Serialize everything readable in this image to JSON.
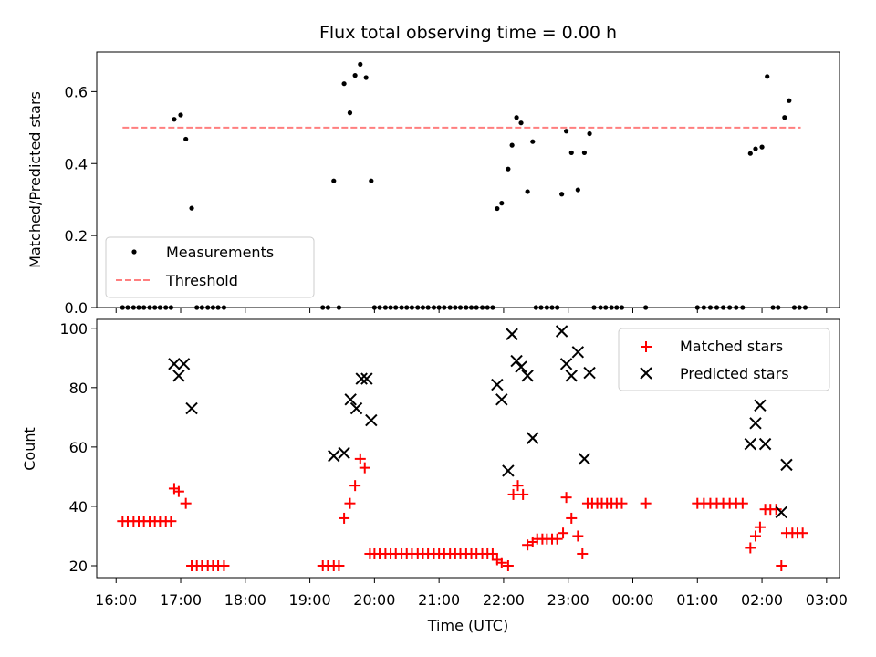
{
  "chart_data": [
    {
      "type": "scatter",
      "title": "Flux total observing time = 0.00 h",
      "xlabel": "",
      "ylabel": "Matched/Predicted stars",
      "xlim": [
        15.7,
        27.2
      ],
      "ylim": [
        0,
        0.71
      ],
      "yticks": [
        0.0,
        0.2,
        0.4,
        0.6
      ],
      "ytick_labels": [
        "0.0",
        "0.2",
        "0.4",
        "0.6"
      ],
      "legend": {
        "position": "lower-left",
        "entries": [
          "Measurements",
          "Threshold"
        ]
      },
      "threshold": {
        "name": "Threshold",
        "value": 0.5,
        "x_range": [
          16.1,
          26.6
        ],
        "color": "#ff7f7f"
      },
      "series": [
        {
          "name": "Measurements",
          "marker": "dot",
          "color": "#000000",
          "x": [
            16.1,
            16.18,
            16.27,
            16.35,
            16.43,
            16.52,
            16.6,
            16.68,
            16.77,
            16.85,
            16.9,
            17.0,
            17.08,
            17.17,
            17.25,
            17.33,
            17.42,
            17.5,
            17.58,
            17.67,
            19.2,
            19.28,
            19.37,
            19.45,
            19.53,
            19.62,
            19.7,
            19.78,
            19.87,
            19.95,
            20.0,
            20.08,
            20.17,
            20.25,
            20.33,
            20.42,
            20.5,
            20.58,
            20.67,
            20.75,
            20.83,
            20.92,
            21.0,
            21.08,
            21.17,
            21.25,
            21.33,
            21.42,
            21.5,
            21.58,
            21.67,
            21.75,
            21.83,
            21.9,
            21.97,
            22.07,
            22.13,
            22.2,
            22.27,
            22.37,
            22.45,
            22.5,
            22.58,
            22.67,
            22.75,
            22.83,
            22.9,
            22.97,
            23.05,
            23.15,
            23.25,
            23.33,
            23.4,
            23.5,
            23.58,
            23.67,
            23.75,
            23.83,
            24.2,
            25.0,
            25.1,
            25.2,
            25.3,
            25.4,
            25.5,
            25.6,
            25.7,
            25.82,
            25.9,
            26.0,
            26.08,
            26.17,
            26.25,
            26.35,
            26.42,
            26.5,
            26.58,
            26.67
          ],
          "y": [
            0,
            0,
            0,
            0,
            0,
            0,
            0,
            0,
            0,
            0,
            0.523,
            0.535,
            0.468,
            0.276,
            0,
            0,
            0,
            0,
            0,
            0,
            0,
            0,
            0.352,
            0,
            0.622,
            0.541,
            0.645,
            0.676,
            0.639,
            0.352,
            0,
            0,
            0,
            0,
            0,
            0,
            0,
            0,
            0,
            0,
            0,
            0,
            0,
            0,
            0,
            0,
            0,
            0,
            0,
            0,
            0,
            0,
            0,
            0.275,
            0.29,
            0.385,
            0.451,
            0.528,
            0.513,
            0.322,
            0.461,
            0,
            0,
            0,
            0,
            0,
            0.315,
            0.49,
            0.43,
            0.327,
            0.43,
            0.483,
            0,
            0,
            0,
            0,
            0,
            0,
            0,
            0,
            0,
            0,
            0,
            0,
            0,
            0,
            0,
            0.428,
            0.441,
            0.446,
            0.642,
            0,
            0,
            0.528,
            0.575,
            0,
            0,
            0
          ],
          "note": "additional zero points at x = 16.1 to 17.67 as listed"
        }
      ]
    },
    {
      "type": "scatter",
      "title": "",
      "xlabel": "Time (UTC)",
      "ylabel": "Count",
      "xlim": [
        15.7,
        27.2
      ],
      "ylim": [
        16,
        103
      ],
      "yticks": [
        20,
        40,
        60,
        80,
        100
      ],
      "ytick_labels": [
        "20",
        "40",
        "60",
        "80",
        "100"
      ],
      "xticks": [
        16,
        17,
        18,
        19,
        20,
        21,
        22,
        23,
        24,
        25,
        26,
        27
      ],
      "xtick_labels": [
        "16:00",
        "17:00",
        "18:00",
        "19:00",
        "20:00",
        "21:00",
        "22:00",
        "23:00",
        "00:00",
        "01:00",
        "02:00",
        "03:00"
      ],
      "legend": {
        "position": "top-right",
        "entries": [
          "Matched stars",
          "Predicted stars"
        ]
      },
      "series": [
        {
          "name": "Matched stars",
          "marker": "plus",
          "color": "#ff0000",
          "x": [
            16.1,
            16.18,
            16.27,
            16.35,
            16.43,
            16.52,
            16.6,
            16.68,
            16.77,
            16.85,
            16.9,
            16.97,
            17.08,
            17.17,
            17.25,
            17.33,
            17.42,
            17.5,
            17.58,
            17.67,
            19.2,
            19.28,
            19.37,
            19.45,
            19.53,
            19.62,
            19.7,
            19.78,
            19.85,
            19.93,
            20.0,
            20.08,
            20.17,
            20.25,
            20.33,
            20.42,
            20.5,
            20.58,
            20.67,
            20.75,
            20.83,
            20.92,
            21.0,
            21.08,
            21.17,
            21.25,
            21.33,
            21.42,
            21.5,
            21.58,
            21.67,
            21.75,
            21.83,
            21.9,
            21.97,
            22.07,
            22.15,
            22.22,
            22.3,
            22.37,
            22.45,
            22.52,
            22.6,
            22.67,
            22.75,
            22.83,
            22.92,
            22.97,
            23.05,
            23.15,
            23.22,
            23.3,
            23.37,
            23.45,
            23.52,
            23.6,
            23.67,
            23.75,
            23.83,
            24.2,
            25.0,
            25.1,
            25.2,
            25.3,
            25.4,
            25.5,
            25.6,
            25.7,
            25.82,
            25.9,
            25.97,
            26.05,
            26.13,
            26.22,
            26.3,
            26.38,
            26.47,
            26.55,
            26.63
          ],
          "y": [
            35,
            35,
            35,
            35,
            35,
            35,
            35,
            35,
            35,
            35,
            46,
            45,
            41,
            20,
            20,
            20,
            20,
            20,
            20,
            20,
            20,
            20,
            20,
            20,
            36,
            41,
            47,
            56,
            53,
            24,
            24,
            24,
            24,
            24,
            24,
            24,
            24,
            24,
            24,
            24,
            24,
            24,
            24,
            24,
            24,
            24,
            24,
            24,
            24,
            24,
            24,
            24,
            24,
            22,
            21,
            20,
            44,
            47,
            44,
            27,
            28,
            29,
            29,
            29,
            29,
            29,
            31,
            43,
            36,
            30,
            24,
            41,
            41,
            41,
            41,
            41,
            41,
            41,
            41,
            41,
            41,
            41,
            41,
            41,
            41,
            41,
            41,
            41,
            26,
            30,
            33,
            39,
            39,
            39,
            20,
            31,
            31,
            31,
            31
          ]
        },
        {
          "name": "Predicted stars",
          "marker": "x",
          "color": "#000000",
          "x": [
            16.9,
            16.97,
            17.05,
            17.17,
            19.37,
            19.53,
            19.63,
            19.72,
            19.8,
            19.88,
            19.95,
            21.9,
            21.97,
            22.07,
            22.13,
            22.2,
            22.27,
            22.37,
            22.45,
            22.9,
            22.97,
            23.05,
            23.15,
            23.25,
            23.33,
            25.82,
            25.9,
            25.97,
            26.05,
            26.3,
            26.38
          ],
          "y": [
            88,
            84,
            88,
            73,
            57,
            58,
            76,
            73,
            83,
            83,
            69,
            81,
            76,
            52,
            98,
            89,
            87,
            84,
            63,
            99,
            88,
            84,
            92,
            56,
            85,
            61,
            68,
            74,
            61,
            38,
            54
          ]
        }
      ]
    }
  ]
}
